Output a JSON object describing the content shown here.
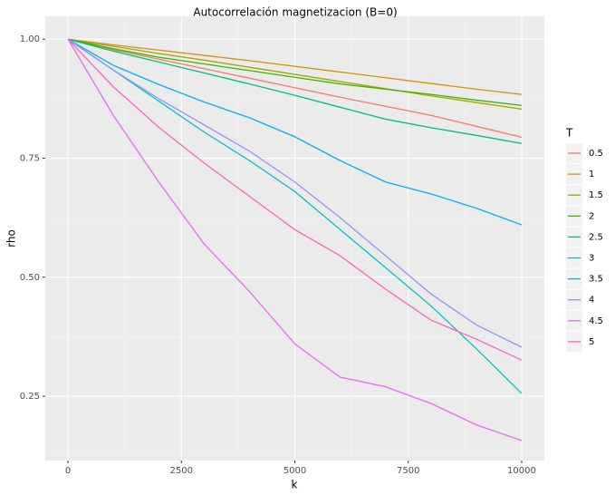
{
  "chart_data": {
    "type": "line",
    "title": "Autocorrelación magnetizacion (B=0)",
    "x_label": "k",
    "y_label": "rho",
    "legend_title": "T",
    "x": [
      0,
      1000,
      2000,
      3000,
      4000,
      5000,
      6000,
      7000,
      8000,
      9000,
      10000
    ],
    "xlim": [
      -500,
      10500
    ],
    "ylim": [
      0.115,
      1.048
    ],
    "xticks": [
      0,
      2500,
      5000,
      7500,
      10000
    ],
    "yticks": [
      {
        "value": 0.25,
        "label": "0.25"
      },
      {
        "value": 0.5,
        "label": "0.50"
      },
      {
        "value": 0.75,
        "label": "0.75"
      },
      {
        "value": 1.0,
        "label": "1.00"
      }
    ],
    "grid": true,
    "legend_position": "right",
    "series": [
      {
        "name": "0.5",
        "color": "#F8766D",
        "values": [
          1,
          0.978,
          0.958,
          0.938,
          0.918,
          0.898,
          0.878,
          0.859,
          0.84,
          0.817,
          0.794
        ]
      },
      {
        "name": "1",
        "color": "#D89000",
        "values": [
          1,
          0.988,
          0.977,
          0.966,
          0.955,
          0.943,
          0.931,
          0.919,
          0.907,
          0.895,
          0.884
        ]
      },
      {
        "name": "1.5",
        "color": "#A3A500",
        "values": [
          1,
          0.985,
          0.97,
          0.956,
          0.941,
          0.926,
          0.911,
          0.896,
          0.881,
          0.867,
          0.853
        ]
      },
      {
        "name": "2",
        "color": "#39B600",
        "values": [
          1,
          0.98,
          0.962,
          0.948,
          0.934,
          0.92,
          0.906,
          0.895,
          0.884,
          0.872,
          0.861
        ]
      },
      {
        "name": "2.5",
        "color": "#00BF7D",
        "values": [
          1,
          0.975,
          0.952,
          0.929,
          0.906,
          0.882,
          0.857,
          0.832,
          0.814,
          0.798,
          0.781
        ]
      },
      {
        "name": "3",
        "color": "#00BFC4",
        "values": [
          1,
          0.935,
          0.87,
          0.805,
          0.745,
          0.68,
          0.6,
          0.52,
          0.44,
          0.35,
          0.256
        ]
      },
      {
        "name": "3.5",
        "color": "#00B0F6",
        "values": [
          1,
          0.945,
          0.905,
          0.868,
          0.835,
          0.795,
          0.745,
          0.7,
          0.675,
          0.645,
          0.61
        ]
      },
      {
        "name": "4",
        "color": "#9590FF",
        "values": [
          1,
          0.935,
          0.875,
          0.82,
          0.765,
          0.7,
          0.625,
          0.545,
          0.465,
          0.4,
          0.353
        ]
      },
      {
        "name": "4.5",
        "color": "#E76BF3",
        "values": [
          1,
          0.84,
          0.7,
          0.57,
          0.47,
          0.36,
          0.29,
          0.27,
          0.235,
          0.19,
          0.157
        ]
      },
      {
        "name": "5",
        "color": "#FF62BC",
        "values": [
          1,
          0.9,
          0.815,
          0.74,
          0.67,
          0.6,
          0.545,
          0.475,
          0.41,
          0.37,
          0.326
        ]
      }
    ]
  }
}
